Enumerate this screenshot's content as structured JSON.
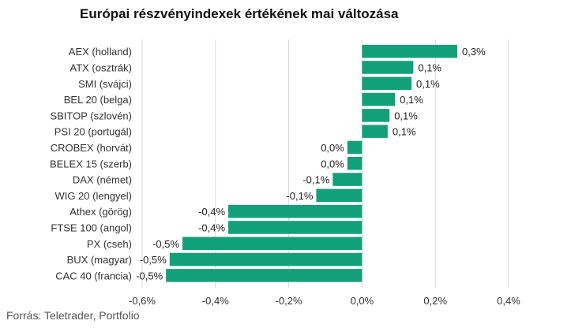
{
  "title": "Európai részvényindexek értékének mai változása",
  "source": "Forrás: Teletrader, Portfolio",
  "colors": {
    "bar": "#12a07a",
    "grid": "#d9d9d9",
    "text": "#333333"
  },
  "chart_data": {
    "type": "bar",
    "orientation": "horizontal",
    "title": "Európai részvényindexek értékének mai változása",
    "categories": [
      "AEX (holland)",
      "ATX (osztrák)",
      "SMI (svájci)",
      "BEL 20 (belga)",
      "SBITOP (szlovén)",
      "PSI 20 (portugál)",
      "CROBEX (horvát)",
      "BELEX 15 (szerb)",
      "DAX (német)",
      "WIG 20 (lengyel)",
      "Athex (görög)",
      "FTSE 100 (angol)",
      "PX (cseh)",
      "BUX (magyar)",
      "CAC 40 (francia)"
    ],
    "values": [
      0.26,
      0.14,
      0.135,
      0.09,
      0.075,
      0.07,
      -0.04,
      -0.04,
      -0.08,
      -0.125,
      -0.365,
      -0.365,
      -0.49,
      -0.525,
      -0.535
    ],
    "data_labels": [
      "0,3%",
      "0,1%",
      "0,1%",
      "0,1%",
      "0,1%",
      "0,1%",
      "0,0%",
      "0,0%",
      "-0,1%",
      "-0,1%",
      "-0,4%",
      "-0,4%",
      "-0,5%",
      "-0,5%",
      "-0,5%"
    ],
    "xlim": [
      -0.6,
      0.4
    ],
    "xticks": [
      -0.6,
      -0.4,
      -0.2,
      0.0,
      0.2,
      0.4
    ],
    "xtick_labels": [
      "-0,6%",
      "-0,4%",
      "-0,2%",
      "0,0%",
      "0,2%",
      "0,4%"
    ],
    "grid": true,
    "legend": "none"
  }
}
